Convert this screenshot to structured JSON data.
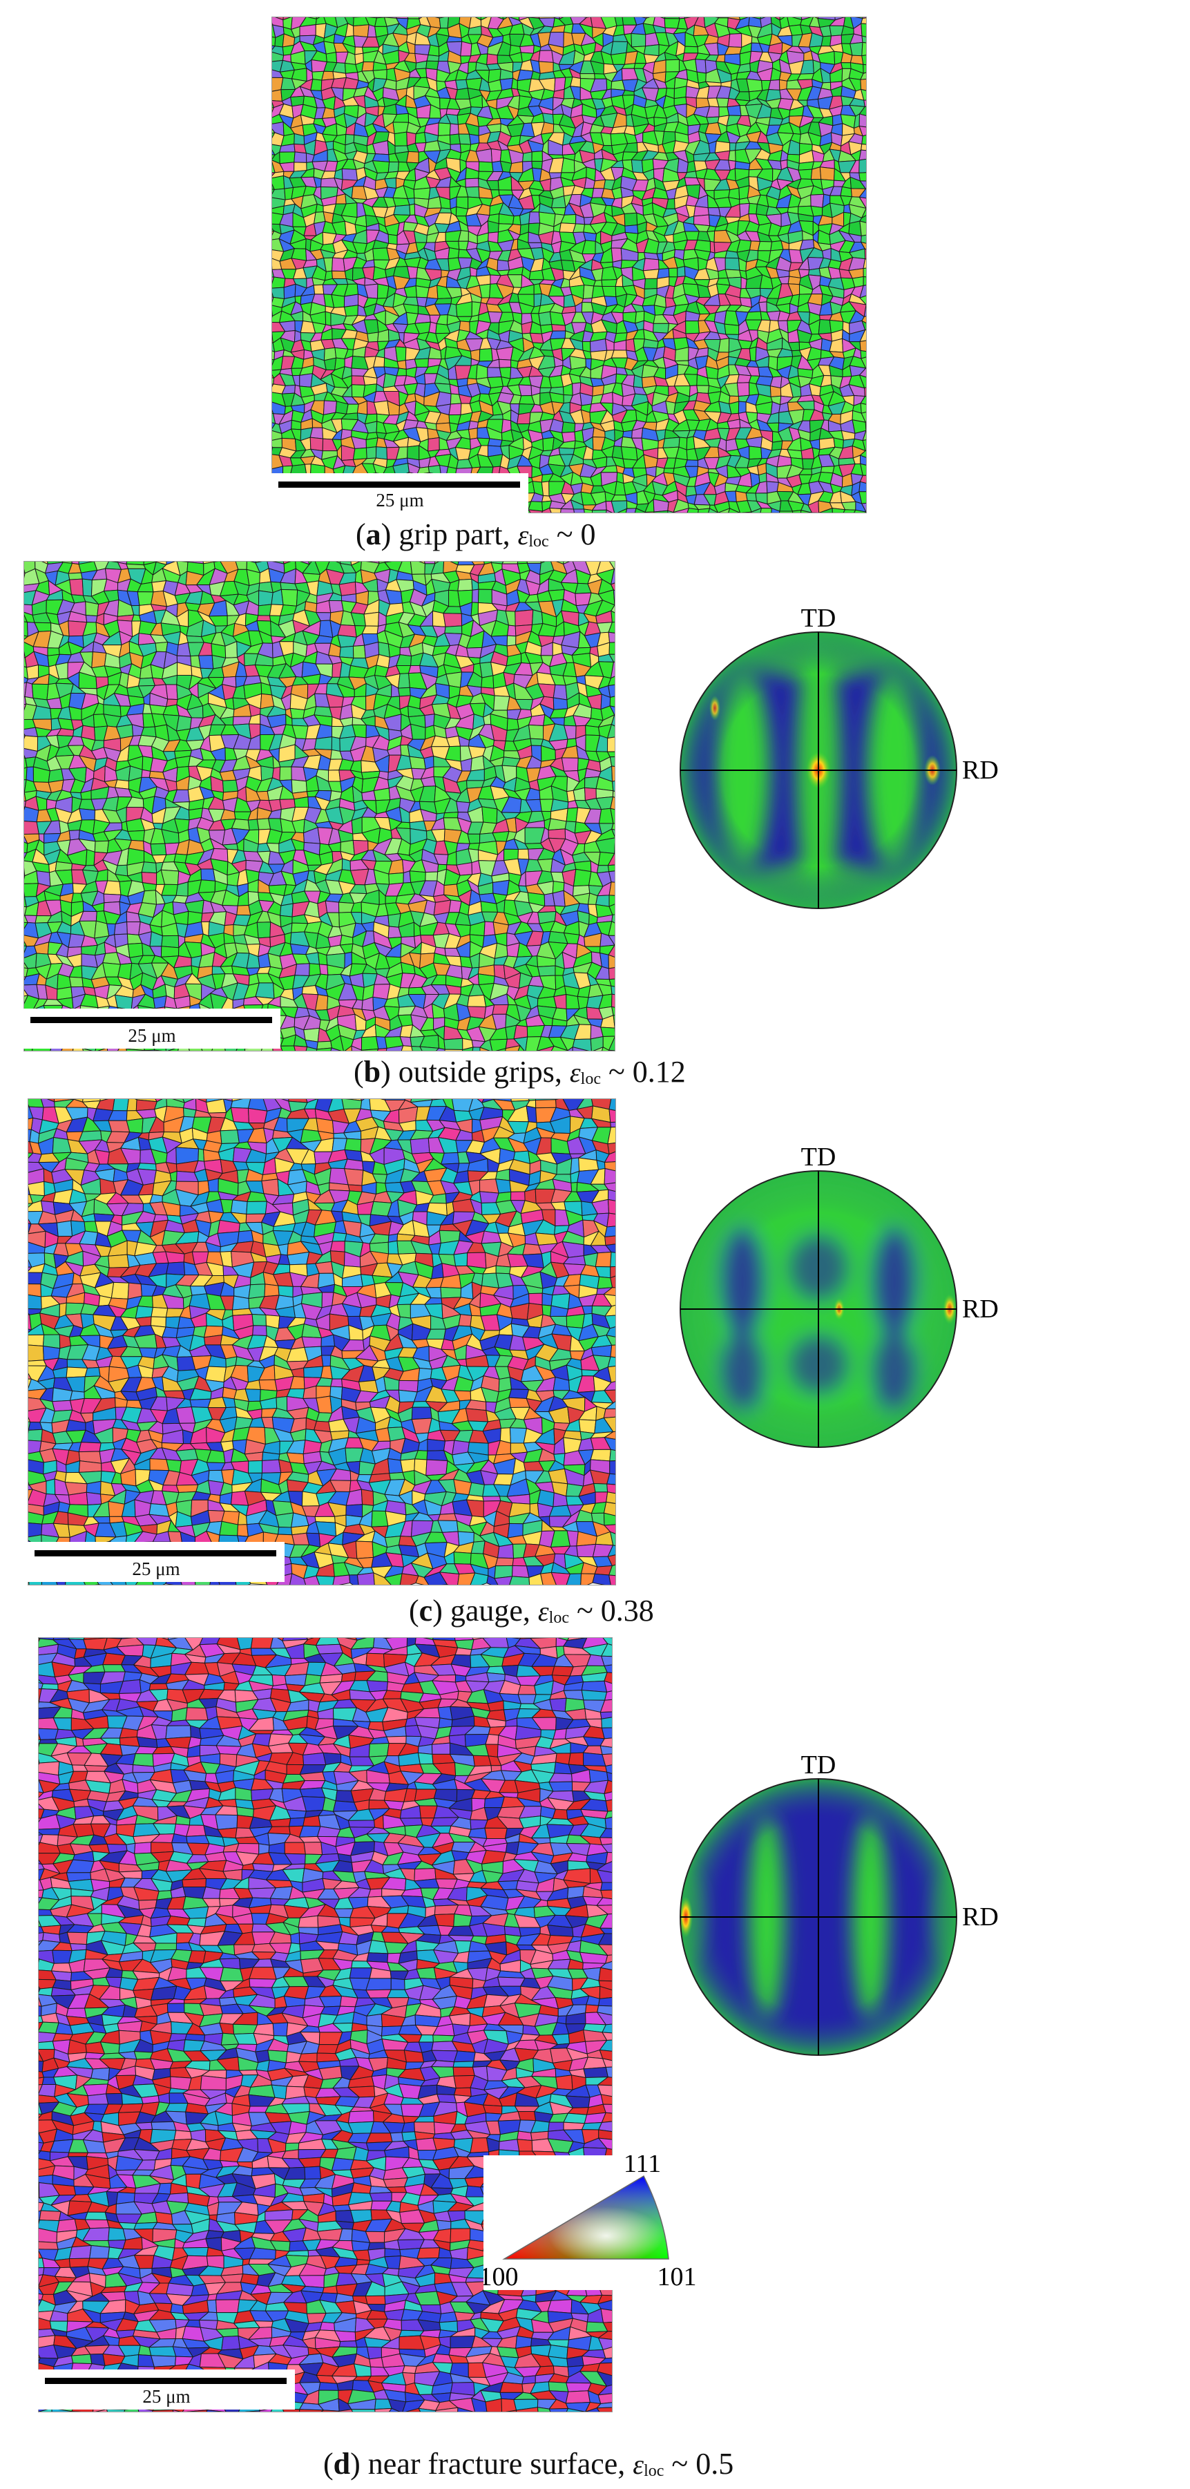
{
  "figure": {
    "panels": [
      {
        "id": "a",
        "letter": "a",
        "description": "grip part, ",
        "strain_symbol": "ε",
        "strain_subscript": "loc",
        "strain_value": " ~ 0",
        "scale_label": "25 μm",
        "palette": [
          "#33e533",
          "#33e533",
          "#33e533",
          "#33e533",
          "#22cc3a",
          "#55ee44",
          "#7ae85a",
          "#3fd46e",
          "#2fbf9e",
          "#c46ad6",
          "#e060c9",
          "#8b6be6",
          "#e84d8a",
          "#f0a13a",
          "#3c6ff0",
          "#ffd46b"
        ],
        "has_pole_figure": false
      },
      {
        "id": "b",
        "letter": "b",
        "description": "outside grips, ",
        "strain_symbol": "ε",
        "strain_subscript": "loc",
        "strain_value": " ~ 0.12",
        "scale_label": "25 μm",
        "palette": [
          "#33e533",
          "#33e533",
          "#33e533",
          "#2ed84a",
          "#55ee44",
          "#7ae85a",
          "#3fd46e",
          "#2fc6a6",
          "#c46ad6",
          "#e060c9",
          "#8b6be6",
          "#e84d8a",
          "#f0a13a",
          "#3c6ff0",
          "#ffe06b",
          "#a0f080"
        ],
        "has_pole_figure": true
      },
      {
        "id": "c",
        "letter": "c",
        "description": "gauge, ",
        "strain_symbol": "ε",
        "strain_subscript": "loc",
        "strain_value": " ~ 0.38",
        "scale_label": "25 μm",
        "palette": [
          "#1fc9c9",
          "#3bd18a",
          "#2f6ff0",
          "#2b3fd8",
          "#e04040",
          "#ee3a9a",
          "#9a4de6",
          "#34dd44",
          "#f0c23a",
          "#44b2f0",
          "#c74fd8",
          "#f06a6a",
          "#4ad96a",
          "#ff8a3a",
          "#1b9edb",
          "#ffe15a"
        ],
        "has_pole_figure": true
      },
      {
        "id": "d",
        "letter": "d",
        "description": "near fracture surface, ",
        "strain_symbol": "ε",
        "strain_subscript": "loc",
        "strain_value": " ~ 0.5",
        "scale_label": "25 μm",
        "palette": [
          "#e02a2a",
          "#ef3b3b",
          "#2f42e0",
          "#3a5cf0",
          "#d446e0",
          "#ec4bb0",
          "#9a55ec",
          "#5c7cf2",
          "#33d4c8",
          "#3ed46a",
          "#f05a7a",
          "#2a2fb8",
          "#e52e2e",
          "#6a3de6",
          "#ff7a9a",
          "#1fb0d8"
        ],
        "has_pole_figure": true
      }
    ],
    "pole_figure_labels": {
      "td": "TD",
      "rd": "RD"
    },
    "ipf_key": {
      "top": "111",
      "left": "100",
      "right": "101"
    },
    "pole_colors": {
      "background": "#2323a8",
      "edge": "#28b04a",
      "band": "#36e02e",
      "hot": "#ffd21a",
      "peak": "#e82a10"
    }
  }
}
